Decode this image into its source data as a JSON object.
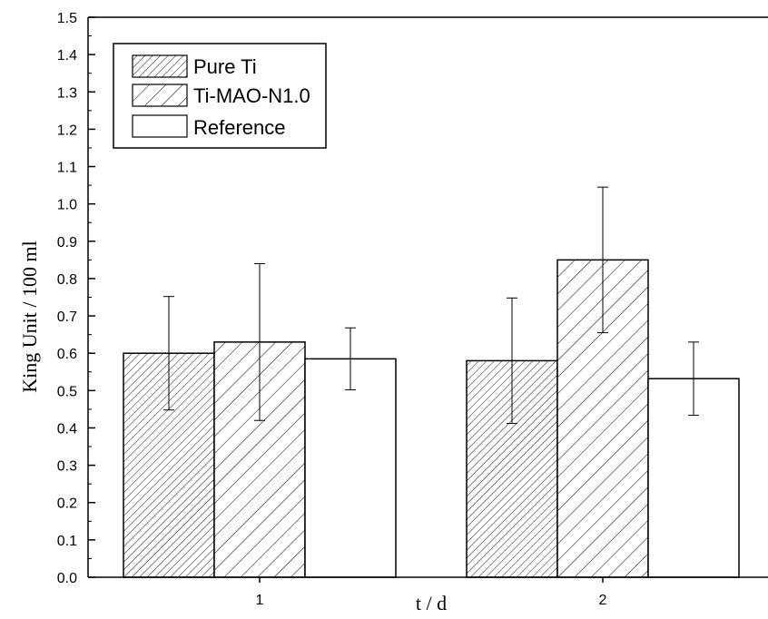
{
  "chart_data": {
    "type": "bar",
    "categories": [
      "1",
      "2"
    ],
    "series": [
      {
        "name": "Pure Ti",
        "values": [
          0.6,
          0.58
        ],
        "errors": [
          0.152,
          0.168
        ],
        "pattern": "fine-hatch"
      },
      {
        "name": "Ti-MAO-N1.0",
        "values": [
          0.63,
          0.85
        ],
        "errors": [
          0.21,
          0.195
        ],
        "pattern": "coarse-hatch"
      },
      {
        "name": "Reference",
        "values": [
          0.585,
          0.532
        ],
        "errors": [
          0.083,
          0.098
        ],
        "pattern": "none"
      }
    ],
    "xlabel": "t / d",
    "ylabel": "King Unit  / 100 ml",
    "ylim": [
      0.0,
      1.5
    ],
    "yticks": [
      "0.0",
      "0.1",
      "0.2",
      "0.3",
      "0.4",
      "0.5",
      "0.6",
      "0.7",
      "0.8",
      "0.9",
      "1.0",
      "1.1",
      "1.2",
      "1.3",
      "1.4",
      "1.5"
    ],
    "legend_position": "top-left",
    "grid": false
  }
}
